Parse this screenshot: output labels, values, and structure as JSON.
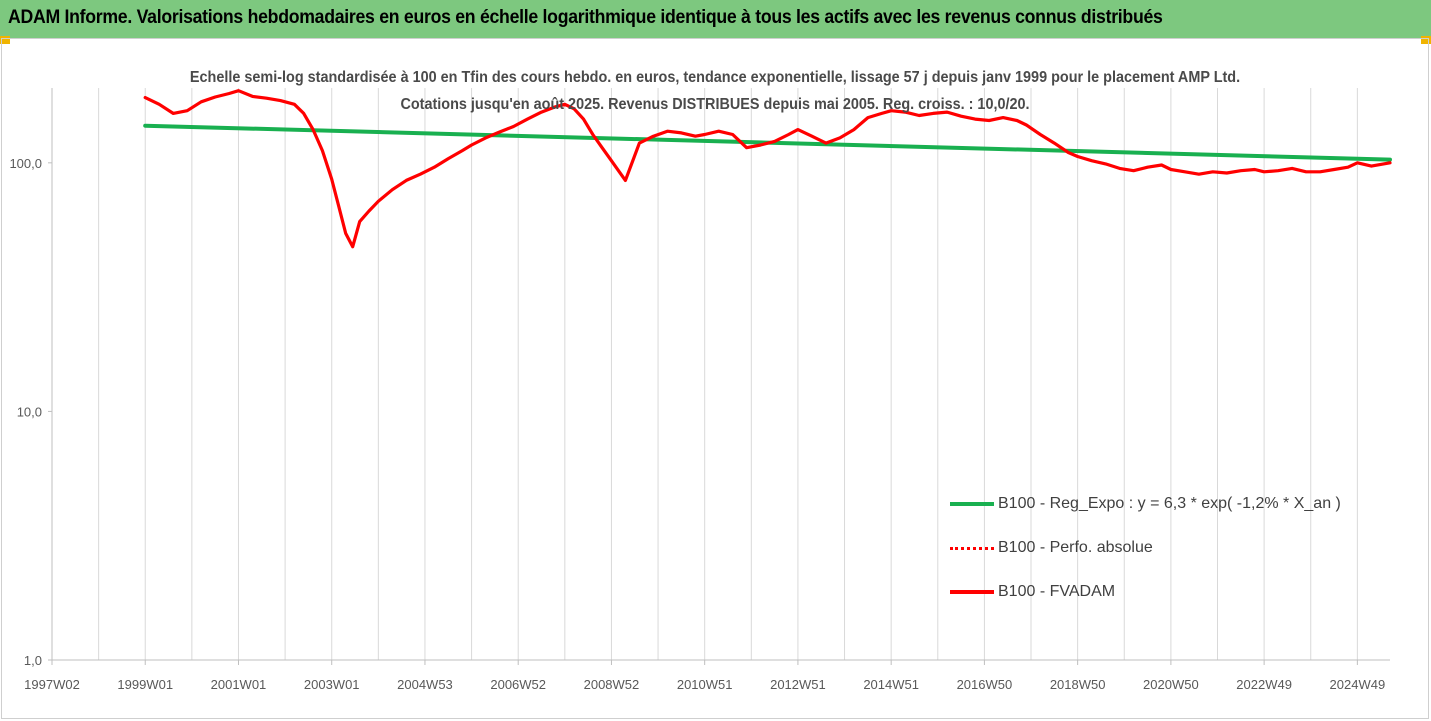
{
  "header": {
    "title": "ADAM Informe. Valorisations hebdomadaires en euros en échelle logarithmique identique à tous les actifs avec les revenus connus distribués"
  },
  "colors": {
    "header_bg": "#7dc87f",
    "reg_line": "#19b050",
    "perf_line": "#ff0000",
    "fv_line": "#ff0000",
    "grid": "#d9d9d9"
  },
  "chart_data": {
    "type": "line",
    "title": "Echelle semi-log standardisée à 100 en Tfin des cours hebdo. en euros, tendance exponentielle, lissage 57 j depuis janv 1999 pour le placement AMP Ltd. Cotations jusqu'en août 2025. Revenus DISTRIBUES depuis mai 2005. Reg. croiss. : 10,0/20.",
    "y_scale": "log",
    "ylim": [
      1,
      200
    ],
    "y_ticks": [
      {
        "value": 1,
        "label": "1,0"
      },
      {
        "value": 10,
        "label": "10,0"
      },
      {
        "value": 100,
        "label": "100,0"
      }
    ],
    "xlim": [
      1997.0,
      2025.7
    ],
    "x_ticks": [
      {
        "value": 1997.0,
        "label": "1997W02"
      },
      {
        "value": 1999.0,
        "label": "1999W01"
      },
      {
        "value": 2001.0,
        "label": "2001W01"
      },
      {
        "value": 2003.0,
        "label": "2003W01"
      },
      {
        "value": 2005.0,
        "label": "2004W53"
      },
      {
        "value": 2007.0,
        "label": "2006W52"
      },
      {
        "value": 2009.0,
        "label": "2008W52"
      },
      {
        "value": 2011.0,
        "label": "2010W51"
      },
      {
        "value": 2013.0,
        "label": "2012W51"
      },
      {
        "value": 2015.0,
        "label": "2014W51"
      },
      {
        "value": 2017.0,
        "label": "2016W50"
      },
      {
        "value": 2019.0,
        "label": "2018W50"
      },
      {
        "value": 2021.0,
        "label": "2020W50"
      },
      {
        "value": 2023.0,
        "label": "2022W49"
      },
      {
        "value": 2025.0,
        "label": "2024W49"
      }
    ],
    "grid": "vertical",
    "legend_position": "bottom-right",
    "series": [
      {
        "name": "B100 - Reg_Expo : y = 6,3 * exp( -1,2% *  X_an )",
        "style": "solid-green",
        "x": [
          1999.0,
          2025.7
        ],
        "y": [
          141,
          103
        ]
      },
      {
        "name": "B100 - Perfo. absolue",
        "style": "dotted-red",
        "x": [],
        "y": []
      },
      {
        "name": "B100 - FVADAM",
        "style": "solid-red",
        "x": [
          1999.0,
          1999.3,
          1999.6,
          1999.9,
          2000.2,
          2000.5,
          2000.8,
          2001.0,
          2001.3,
          2001.6,
          2001.9,
          2002.2,
          2002.4,
          2002.6,
          2002.8,
          2003.0,
          2003.15,
          2003.3,
          2003.45,
          2003.6,
          2003.8,
          2004.0,
          2004.3,
          2004.6,
          2004.9,
          2005.2,
          2005.5,
          2005.8,
          2006.0,
          2006.3,
          2006.6,
          2006.9,
          2007.2,
          2007.5,
          2007.8,
          2008.0,
          2008.2,
          2008.4,
          2008.6,
          2008.8,
          2009.0,
          2009.3,
          2009.6,
          2009.9,
          2010.2,
          2010.5,
          2010.8,
          2011.0,
          2011.3,
          2011.6,
          2011.9,
          2012.2,
          2012.5,
          2012.8,
          2013.0,
          2013.3,
          2013.6,
          2013.9,
          2014.2,
          2014.5,
          2014.8,
          2015.0,
          2015.3,
          2015.6,
          2015.9,
          2016.2,
          2016.5,
          2016.8,
          2017.1,
          2017.4,
          2017.7,
          2017.9,
          2018.2,
          2018.5,
          2018.8,
          2019.0,
          2019.3,
          2019.6,
          2019.9,
          2020.2,
          2020.5,
          2020.8,
          2021.0,
          2021.3,
          2021.6,
          2021.9,
          2022.2,
          2022.5,
          2022.8,
          2023.0,
          2023.3,
          2023.6,
          2023.9,
          2024.2,
          2024.5,
          2024.8,
          2025.0,
          2025.3,
          2025.7
        ],
        "y": [
          183,
          172,
          158,
          162,
          176,
          184,
          190,
          195,
          185,
          182,
          178,
          172,
          158,
          136,
          112,
          86,
          67,
          52,
          46,
          58,
          64,
          70,
          78,
          85,
          90,
          96,
          104,
          112,
          118,
          126,
          133,
          140,
          150,
          160,
          168,
          172,
          165,
          150,
          130,
          115,
          102,
          85,
          120,
          128,
          134,
          132,
          128,
          130,
          134,
          130,
          115,
          118,
          122,
          130,
          136,
          128,
          120,
          126,
          136,
          152,
          158,
          162,
          160,
          155,
          158,
          160,
          154,
          150,
          148,
          152,
          148,
          142,
          130,
          120,
          110,
          106,
          102,
          99,
          95,
          93,
          96,
          98,
          94,
          92,
          90,
          92,
          91,
          93,
          94,
          92,
          93,
          95,
          92,
          92,
          94,
          96,
          100,
          97,
          100
        ]
      }
    ]
  }
}
